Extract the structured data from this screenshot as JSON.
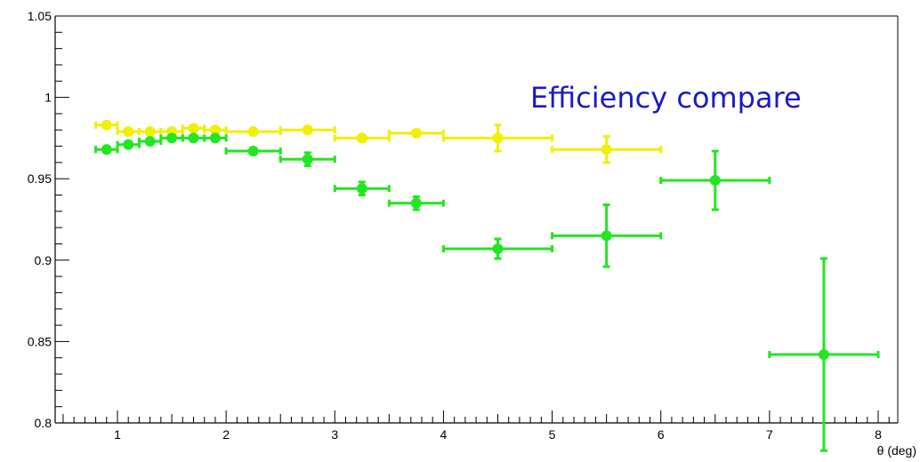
{
  "chart_data": {
    "type": "scatter",
    "title": "Efficiency compare",
    "xlabel": "θ (deg)",
    "ylabel": "",
    "xlim": [
      0.48,
      8.3
    ],
    "ylim": [
      0.8,
      1.05
    ],
    "x_ticks": [
      1,
      2,
      3,
      4,
      5,
      6,
      7,
      8
    ],
    "y_ticks": [
      0.8,
      0.85,
      0.9,
      0.95,
      1.0,
      1.05
    ],
    "y_tick_labels": [
      "0.8",
      "0.85",
      "0.9",
      "0.95",
      "1",
      "1.05"
    ],
    "grid": false,
    "legend": "none",
    "series": [
      {
        "color": "#f0f000",
        "points": [
          {
            "x": 0.9,
            "xerr": 0.1,
            "y": 0.983,
            "yerr": 0.001
          },
          {
            "x": 1.1,
            "xerr": 0.1,
            "y": 0.979,
            "yerr": 0.001
          },
          {
            "x": 1.3,
            "xerr": 0.1,
            "y": 0.979,
            "yerr": 0.001
          },
          {
            "x": 1.5,
            "xerr": 0.1,
            "y": 0.979,
            "yerr": 0.001
          },
          {
            "x": 1.7,
            "xerr": 0.1,
            "y": 0.981,
            "yerr": 0.001
          },
          {
            "x": 1.9,
            "xerr": 0.1,
            "y": 0.98,
            "yerr": 0.001
          },
          {
            "x": 2.25,
            "xerr": 0.25,
            "y": 0.979,
            "yerr": 0.001
          },
          {
            "x": 2.75,
            "xerr": 0.25,
            "y": 0.98,
            "yerr": 0.001
          },
          {
            "x": 3.25,
            "xerr": 0.25,
            "y": 0.975,
            "yerr": 0.002
          },
          {
            "x": 3.75,
            "xerr": 0.25,
            "y": 0.978,
            "yerr": 0.002
          },
          {
            "x": 4.5,
            "xerr": 0.5,
            "y": 0.975,
            "yerr": 0.008
          },
          {
            "x": 5.5,
            "xerr": 0.5,
            "y": 0.968,
            "yerr": 0.008
          }
        ]
      },
      {
        "color": "#22e622",
        "points": [
          {
            "x": 0.9,
            "xerr": 0.1,
            "y": 0.968,
            "yerr": 0.001
          },
          {
            "x": 1.1,
            "xerr": 0.1,
            "y": 0.971,
            "yerr": 0.001
          },
          {
            "x": 1.3,
            "xerr": 0.1,
            "y": 0.973,
            "yerr": 0.001
          },
          {
            "x": 1.5,
            "xerr": 0.1,
            "y": 0.975,
            "yerr": 0.001
          },
          {
            "x": 1.7,
            "xerr": 0.1,
            "y": 0.975,
            "yerr": 0.001
          },
          {
            "x": 1.9,
            "xerr": 0.1,
            "y": 0.975,
            "yerr": 0.001
          },
          {
            "x": 2.25,
            "xerr": 0.25,
            "y": 0.967,
            "yerr": 0.002
          },
          {
            "x": 2.75,
            "xerr": 0.25,
            "y": 0.962,
            "yerr": 0.004
          },
          {
            "x": 3.25,
            "xerr": 0.25,
            "y": 0.944,
            "yerr": 0.004
          },
          {
            "x": 3.75,
            "xerr": 0.25,
            "y": 0.935,
            "yerr": 0.004
          },
          {
            "x": 4.5,
            "xerr": 0.5,
            "y": 0.907,
            "yerr": 0.006
          },
          {
            "x": 5.5,
            "xerr": 0.5,
            "y": 0.915,
            "yerr": 0.019
          },
          {
            "x": 6.5,
            "xerr": 0.5,
            "y": 0.949,
            "yerr": 0.018
          },
          {
            "x": 7.5,
            "xerr": 0.5,
            "y": 0.842,
            "yerr": 0.059
          }
        ]
      }
    ]
  }
}
